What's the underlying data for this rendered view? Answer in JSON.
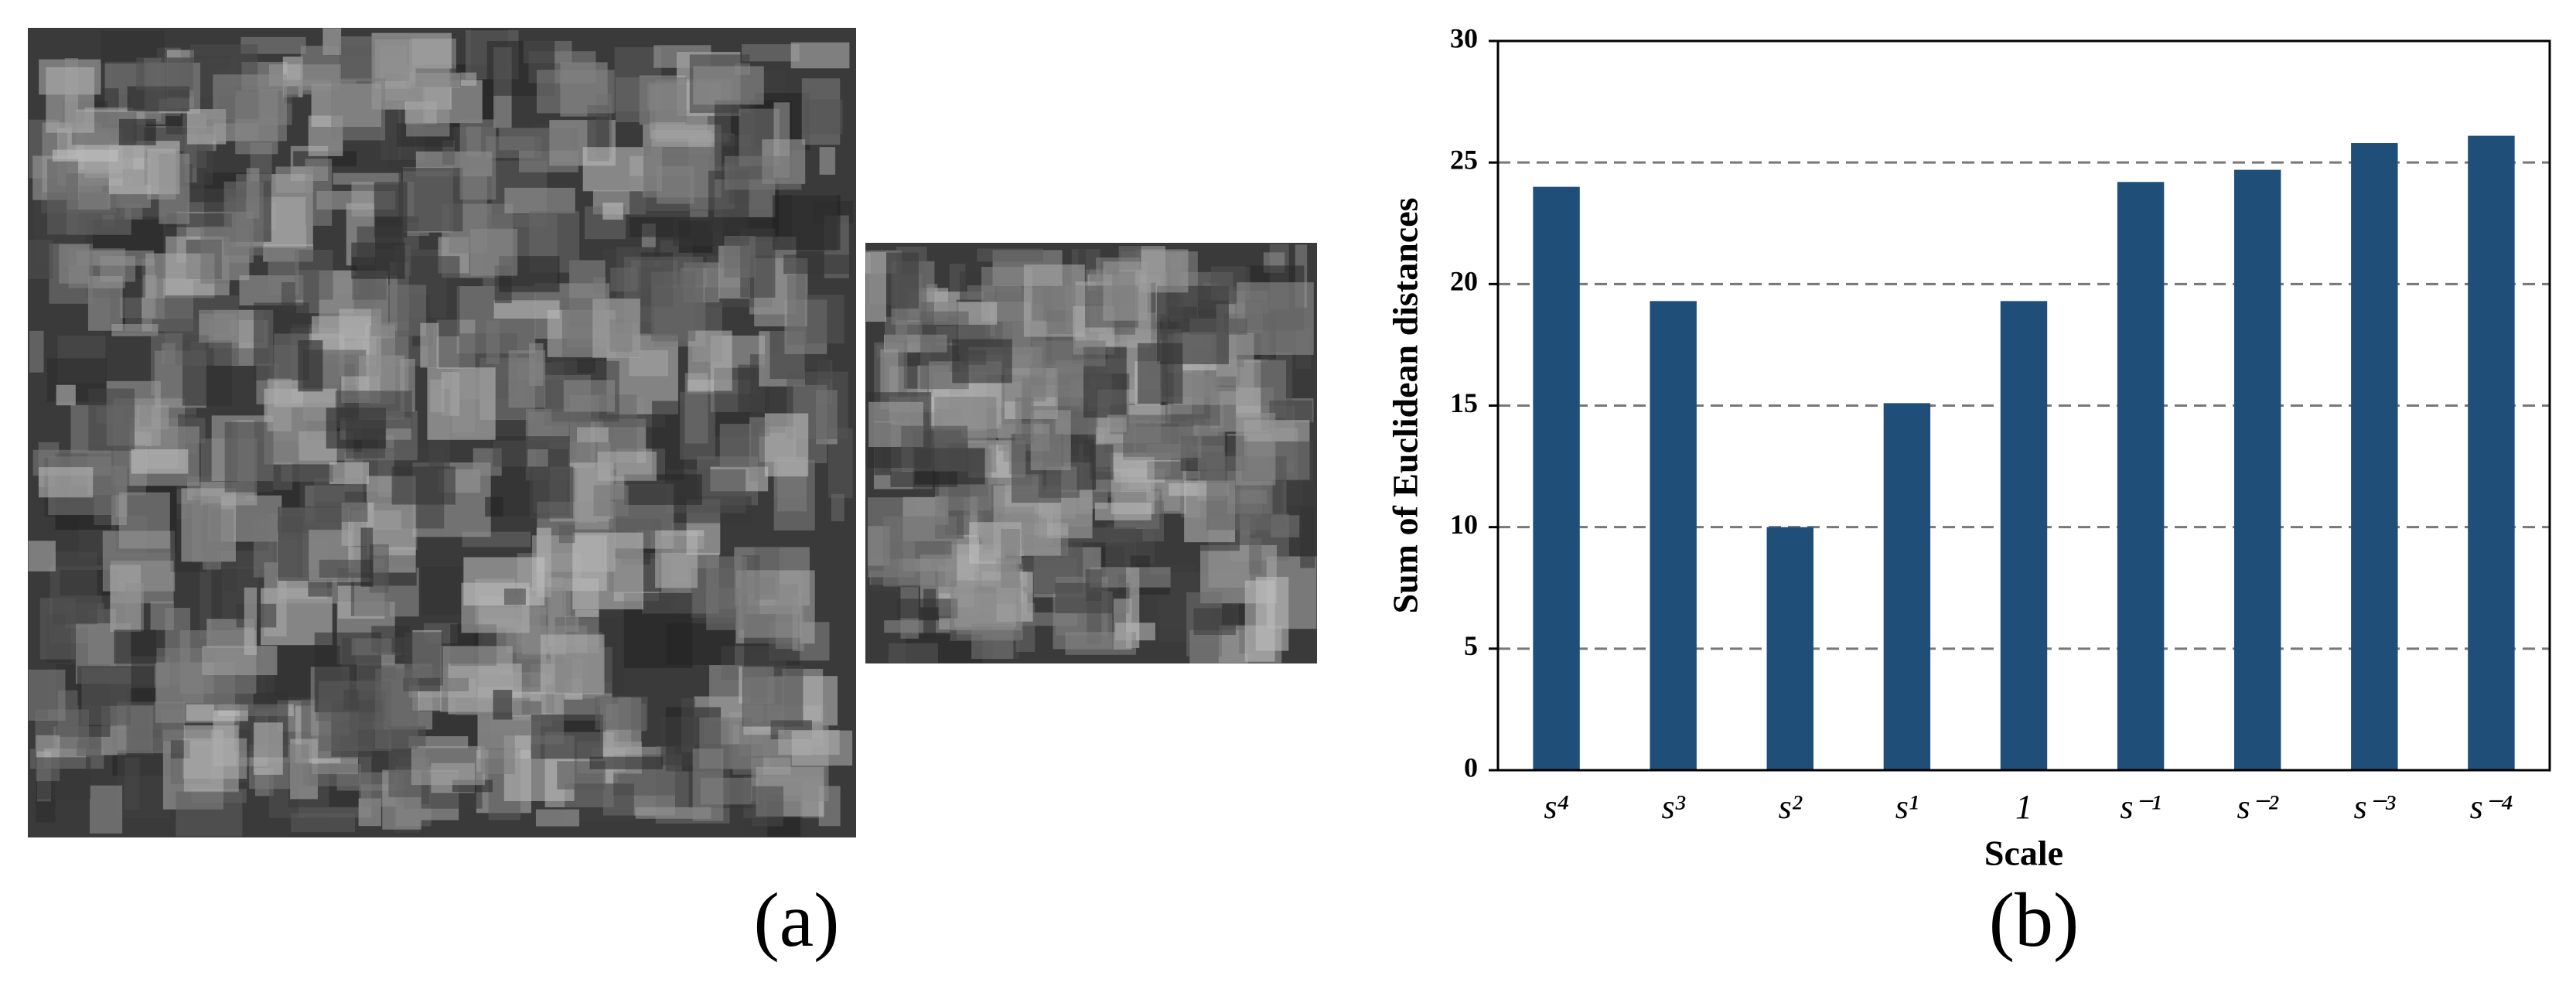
{
  "figure": {
    "panel_labels": [
      "(a)",
      "(b)"
    ]
  },
  "chart_data": {
    "type": "bar",
    "ylabel": "Sum of Euclidean distances",
    "xlabel": "Scale",
    "categories": [
      "s⁴",
      "s³",
      "s²",
      "s¹",
      "1",
      "s⁻¹",
      "s⁻²",
      "s⁻³",
      "s⁻⁴"
    ],
    "values": [
      24,
      19.3,
      10,
      15.1,
      19.3,
      24.2,
      24.7,
      25.8,
      26.1
    ],
    "color": "#1f4e79",
    "ylim": [
      0,
      30
    ],
    "yticks": [
      0,
      5,
      10,
      15,
      20,
      25,
      30
    ],
    "grid": true
  }
}
